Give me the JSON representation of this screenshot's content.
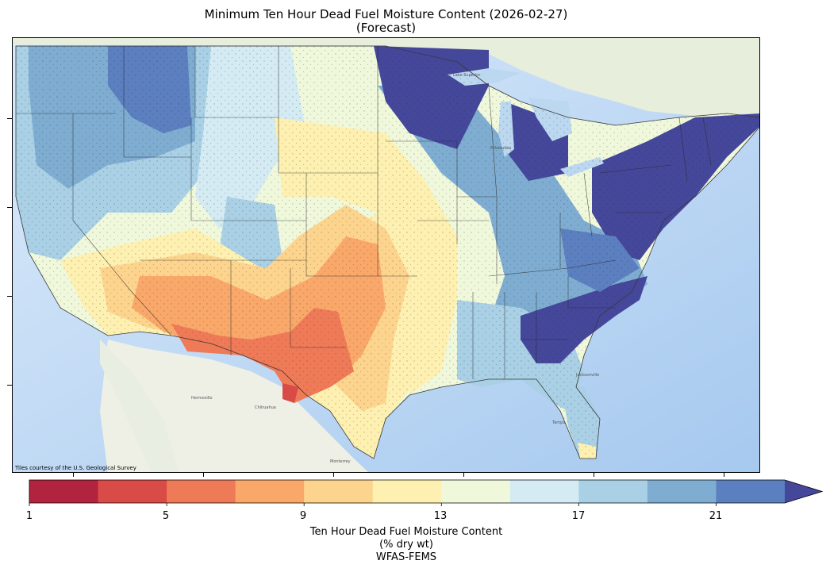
{
  "title": {
    "line1": "Minimum Ten Hour Dead Fuel Moisture Content (2026-02-27)",
    "line2": "(Forecast)"
  },
  "map": {
    "attribution": "Tiles courtesy of the U.S. Geological Survey",
    "place_labels": [
      "Hermosillo",
      "Chihuahua",
      "Monterrey",
      "Lake Superior",
      "Milwaukee",
      "Jacksonville",
      "Tampa"
    ],
    "colors": {
      "ocean": "#cfe3f7",
      "ocean_deep": "#9cc4ee",
      "land_base": "#eef0e8",
      "state_border": "#2b2b2b"
    }
  },
  "colorbar": {
    "ticks": [
      "1",
      "5",
      "9",
      "13",
      "17",
      "21"
    ],
    "label_line1": "Ten Hour Dead Fuel Moisture Content",
    "label_line2": "(% dry wt)",
    "source": "WFAS-FEMS",
    "bins": [
      {
        "from": 1,
        "to": 3,
        "color": "#b2233f"
      },
      {
        "from": 3,
        "to": 5,
        "color": "#d94b46"
      },
      {
        "from": 5,
        "to": 7,
        "color": "#ef7a57"
      },
      {
        "from": 7,
        "to": 9,
        "color": "#f9a86a"
      },
      {
        "from": 9,
        "to": 11,
        "color": "#fdd48d"
      },
      {
        "from": 11,
        "to": 13,
        "color": "#fdf0b0"
      },
      {
        "from": 13,
        "to": 15,
        "color": "#f0f8dc"
      },
      {
        "from": 15,
        "to": 17,
        "color": "#d4ebf3"
      },
      {
        "from": 17,
        "to": 19,
        "color": "#a9d0e5"
      },
      {
        "from": 19,
        "to": 21,
        "color": "#7fadd1"
      },
      {
        "from": 21,
        "to": 23,
        "color": "#5b7fbf"
      },
      {
        "from": 23,
        "to": null,
        "color": "#44479a"
      }
    ]
  }
}
